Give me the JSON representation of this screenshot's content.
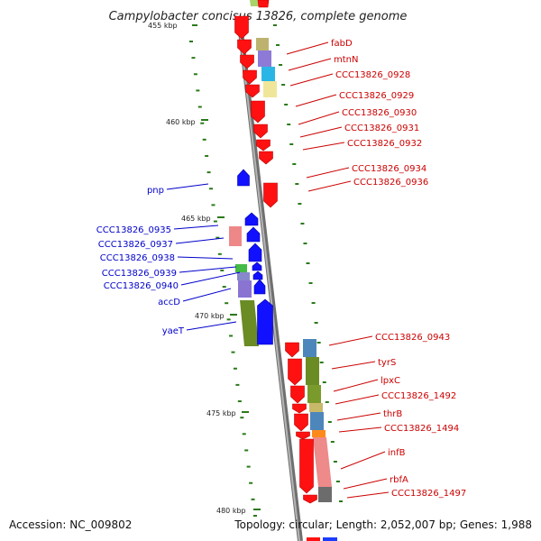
{
  "title": "Campylobacter concisus 13826, complete genome",
  "footer": {
    "accession": "Accession: NC_009802",
    "summary": "Topology: circular; Length: 2,052,007 bp; Genes: 1,988"
  },
  "colors": {
    "plus_label": "#cc0000",
    "minus_label": "#0000cc",
    "backbone": "#888888",
    "tick": "#2a7a1a"
  },
  "scale_labels": [
    "455 kbp",
    "460 kbp",
    "465 kbp",
    "470 kbp",
    "475 kbp",
    "480 kbp"
  ],
  "plus_labels": [
    "fabD",
    "mtnN",
    "CCC13826_0928",
    "CCC13826_0929",
    "CCC13826_0930",
    "CCC13826_0931",
    "CCC13826_0932",
    "CCC13826_0934",
    "CCC13826_0936",
    "CCC13826_0943",
    "tyrS",
    "lpxC",
    "CCC13826_1492",
    "thrB",
    "CCC13826_1494",
    "infB",
    "rbfA",
    "CCC13826_1497"
  ],
  "minus_labels": [
    "pnp",
    "CCC13826_0935",
    "CCC13826_0937",
    "CCC13826_0938",
    "CCC13826_0939",
    "CCC13826_0940",
    "accD",
    "yaeT"
  ]
}
